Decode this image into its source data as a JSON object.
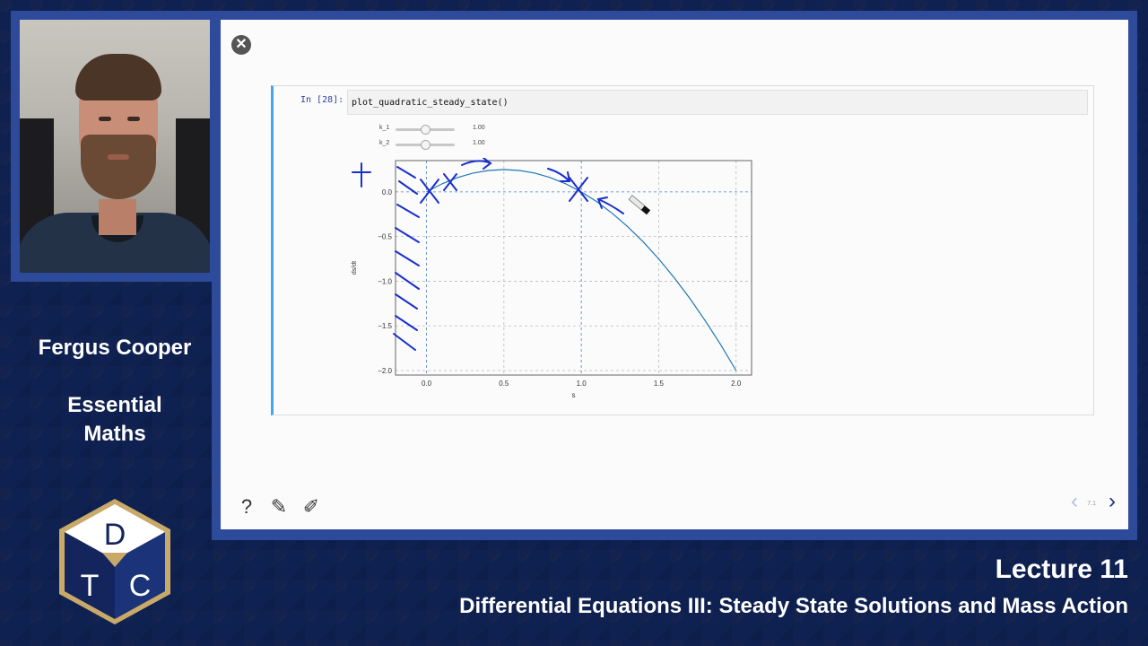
{
  "presenter": {
    "name": "Fergus Cooper",
    "course": [
      "Essential",
      "Maths"
    ]
  },
  "logo": {
    "letters": [
      "D",
      "T",
      "C"
    ]
  },
  "lecture": {
    "title": "Lecture 11",
    "subtitle": "Differential Equations III: Steady State Solutions and Mass Action"
  },
  "notebook": {
    "prompt": "In [28]:",
    "code": "plot_quadratic_steady_state()",
    "sliders": [
      {
        "label": "k_1",
        "value": "1.00",
        "fraction": 0.5
      },
      {
        "label": "k_2",
        "value": "1.00",
        "fraction": 0.5
      }
    ]
  },
  "chart_data": {
    "type": "line",
    "x": [
      0.0,
      0.1,
      0.2,
      0.3,
      0.4,
      0.5,
      0.6,
      0.7,
      0.8,
      0.9,
      1.0,
      1.1,
      1.2,
      1.3,
      1.4,
      1.5,
      1.6,
      1.7,
      1.8,
      1.9,
      2.0
    ],
    "y": [
      0.0,
      0.09,
      0.16,
      0.21,
      0.24,
      0.25,
      0.24,
      0.21,
      0.16,
      0.09,
      0.0,
      -0.11,
      -0.24,
      -0.39,
      -0.56,
      -0.75,
      -0.96,
      -1.19,
      -1.44,
      -1.71,
      -2.0
    ],
    "xlabel": "s",
    "ylabel": "ds/dt",
    "xticks": [
      "0.0",
      "0.5",
      "1.0",
      "1.5",
      "2.0"
    ],
    "yticks": [
      "0.0",
      "−0.5",
      "−1.0",
      "−1.5",
      "−2.0"
    ],
    "xlim": [
      -0.2,
      2.1
    ],
    "ylim": [
      -2.05,
      0.35
    ],
    "grid": true,
    "line_color": "#1f77b4"
  },
  "slide_controls": {
    "page": "7.1"
  },
  "colors": {
    "frame": "#2e4a9a",
    "background": "#0f2150",
    "accent": "#42a5f5",
    "ink": "#1a2fcc"
  }
}
